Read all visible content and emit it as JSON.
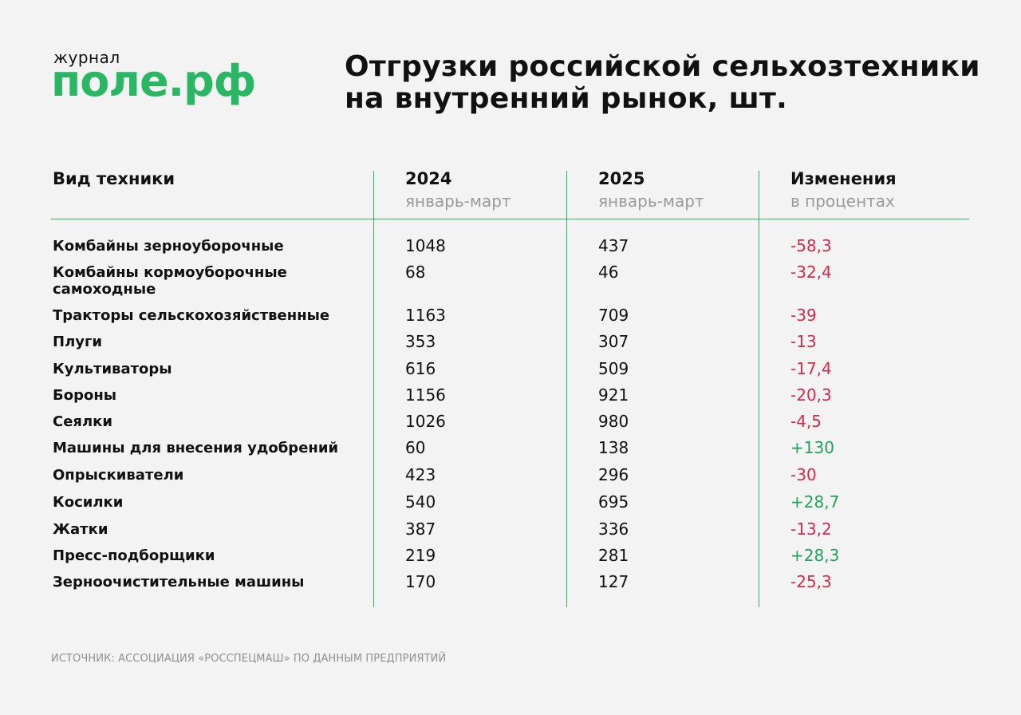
{
  "brand": {
    "small": "журнал",
    "name": "поле.рф"
  },
  "title": {
    "line1": "Отгрузки российской сельхозтехники",
    "line2": "на внутренний рынок, шт."
  },
  "table": {
    "headers": [
      {
        "main": "Вид техники",
        "sub": ""
      },
      {
        "main": "2024",
        "sub": "январь-март"
      },
      {
        "main": "2025",
        "sub": "январь-март"
      },
      {
        "main": "Изменения",
        "sub": "в процентах"
      }
    ],
    "rows": [
      {
        "name": "Комбайны зерноуборочные",
        "y2024": "1048",
        "y2025": "437",
        "change": "-58,3",
        "trend": "down"
      },
      {
        "name": "Комбайны кормоуборочные самоходные",
        "y2024": "68",
        "y2025": "46",
        "change": "-32,4",
        "trend": "down"
      },
      {
        "name": "Тракторы сельскохозяйственные",
        "y2024": "1163",
        "y2025": "709",
        "change": "-39",
        "trend": "down"
      },
      {
        "name": "Плуги",
        "y2024": "353",
        "y2025": "307",
        "change": "-13",
        "trend": "down"
      },
      {
        "name": "Культиваторы",
        "y2024": "616",
        "y2025": "509",
        "change": "-17,4",
        "trend": "down"
      },
      {
        "name": "Бороны",
        "y2024": "1156",
        "y2025": "921",
        "change": "-20,3",
        "trend": "down"
      },
      {
        "name": "Сеялки",
        "y2024": "1026",
        "y2025": "980",
        "change": "-4,5",
        "trend": "down"
      },
      {
        "name": "Машины для внесения удобрений",
        "y2024": "60",
        "y2025": "138",
        "change": "+130",
        "trend": "up"
      },
      {
        "name": "Опрыскиватели",
        "y2024": "423",
        "y2025": "296",
        "change": "-30",
        "trend": "down"
      },
      {
        "name": "Косилки",
        "y2024": "540",
        "y2025": "695",
        "change": "+28,7",
        "trend": "up"
      },
      {
        "name": "Жатки",
        "y2024": "387",
        "y2025": "336",
        "change": "-13,2",
        "trend": "down"
      },
      {
        "name": "Пресс-подборщики",
        "y2024": "219",
        "y2025": "281",
        "change": "+28,3",
        "trend": "up"
      },
      {
        "name": "Зерноочистительные машины",
        "y2024": "170",
        "y2025": "127",
        "change": "-25,3",
        "trend": "down"
      }
    ]
  },
  "source": "ИСТОЧНИК: АССОЦИАЦИЯ «РОССПЕЦМАШ» ПО ДАННЫМ ПРЕДПРИЯТИЙ",
  "colors": {
    "accent": "#2bb664",
    "negative": "#d42a49",
    "positive": "#21a15a",
    "background": "#f3f3f3"
  }
}
